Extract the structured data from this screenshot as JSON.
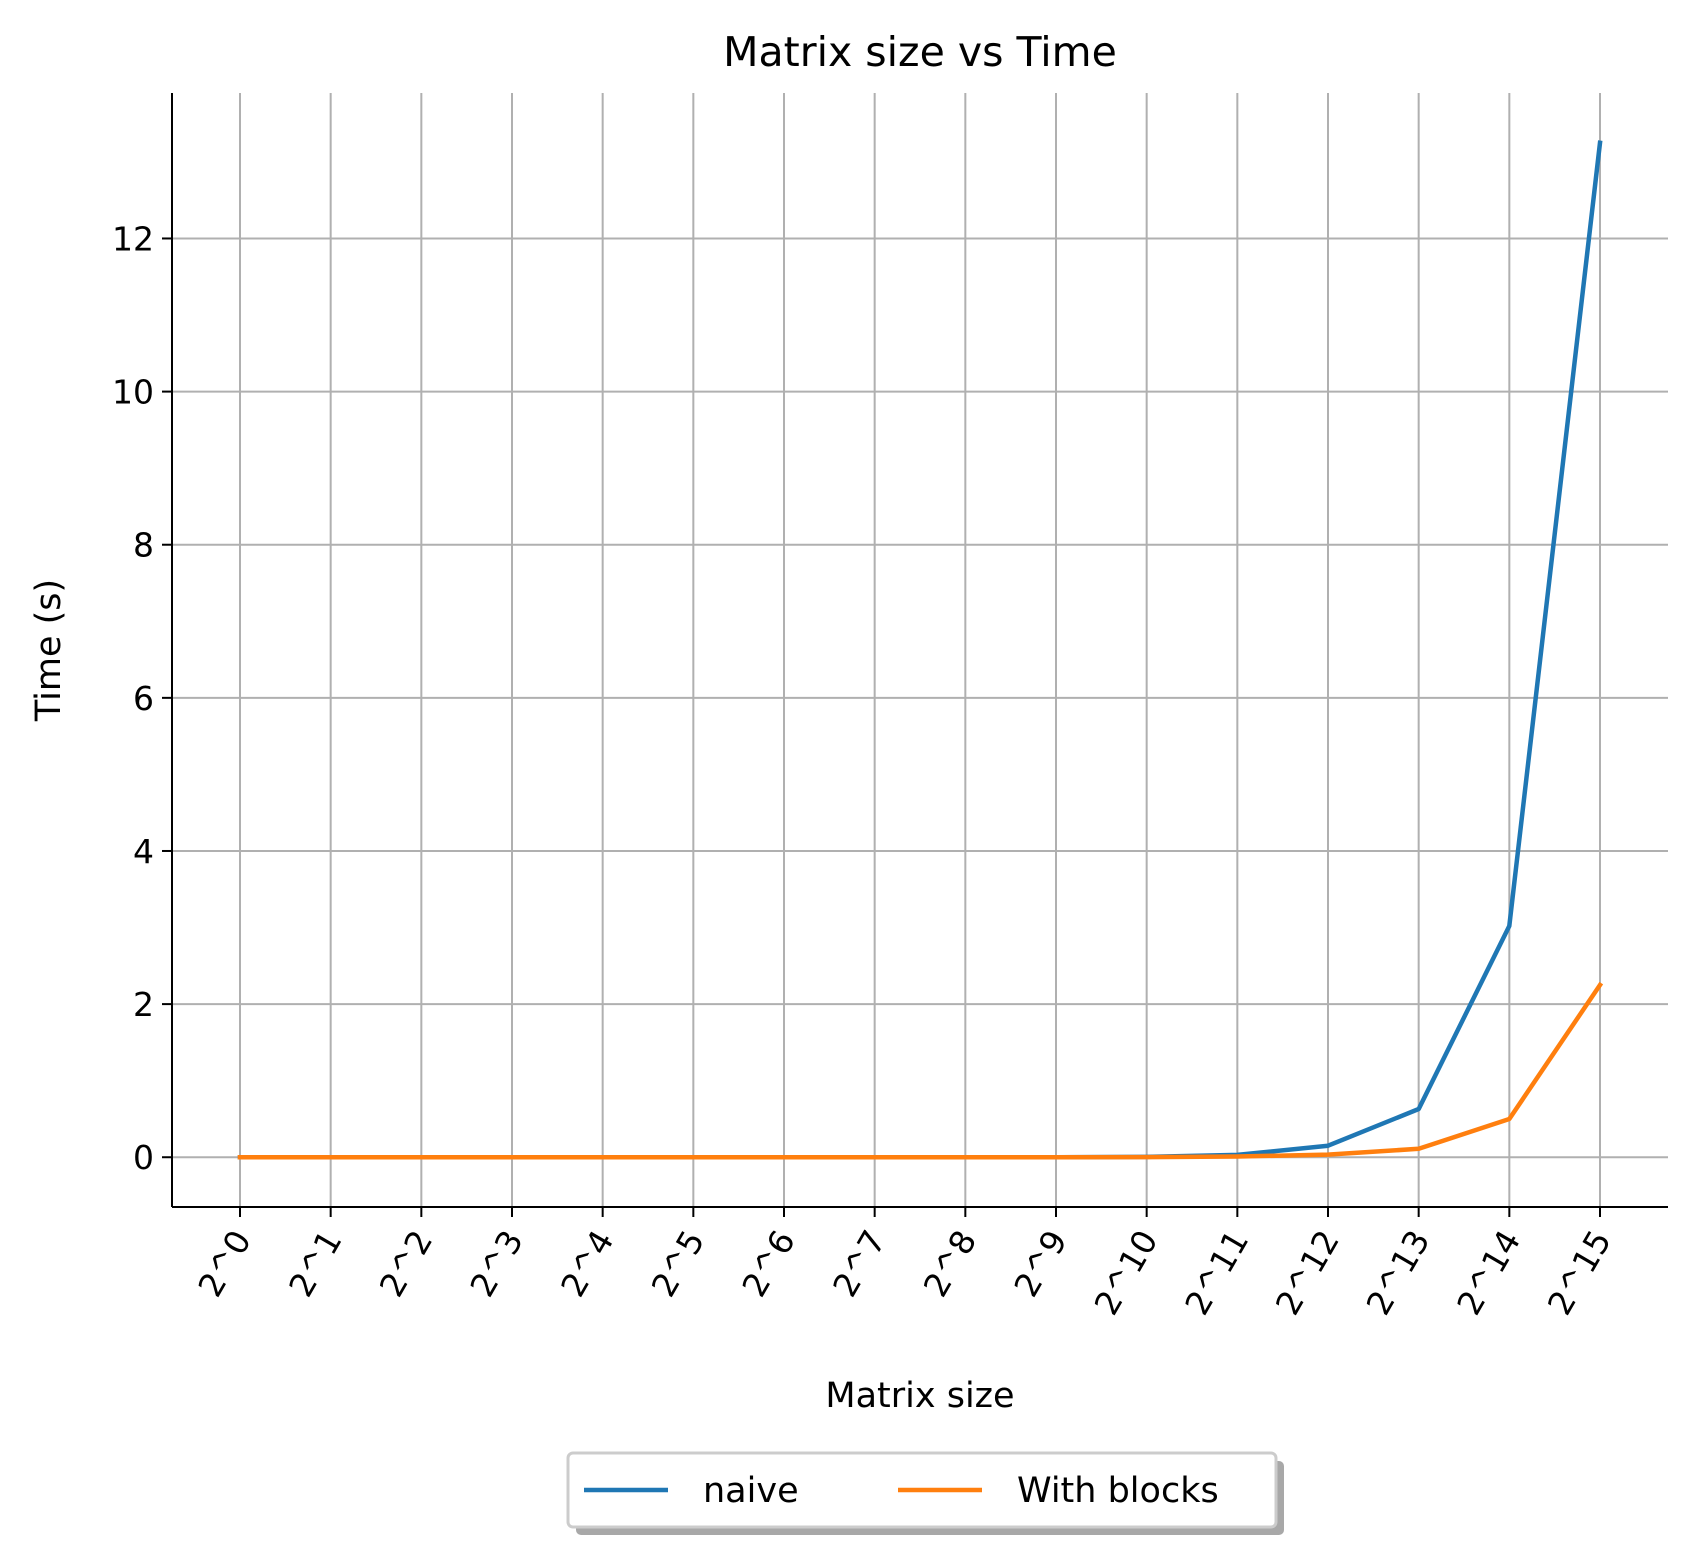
{
  "chart_data": {
    "type": "line",
    "title": "Matrix size vs Time",
    "xlabel": "Matrix size",
    "ylabel": "Time (s)",
    "categories": [
      "2^0",
      "2^1",
      "2^2",
      "2^3",
      "2^4",
      "2^5",
      "2^6",
      "2^7",
      "2^8",
      "2^9",
      "2^10",
      "2^11",
      "2^12",
      "2^13",
      "2^14",
      "2^15"
    ],
    "yticks": [
      0,
      2,
      4,
      6,
      8,
      10,
      12
    ],
    "ylim": [
      -0.65,
      13.9
    ],
    "grid": true,
    "legend": "bottom-center",
    "series": [
      {
        "name": "naive",
        "color": "#1f77b4",
        "values": [
          0,
          0,
          0,
          0,
          0,
          0,
          0,
          0,
          0,
          0,
          0.005,
          0.03,
          0.15,
          0.63,
          3.02,
          13.25
        ]
      },
      {
        "name": "With blocks",
        "color": "#ff7f0e",
        "values": [
          0,
          0,
          0,
          0,
          0,
          0,
          0,
          0,
          0,
          0,
          0.002,
          0.01,
          0.035,
          0.11,
          0.5,
          2.25
        ]
      }
    ]
  }
}
